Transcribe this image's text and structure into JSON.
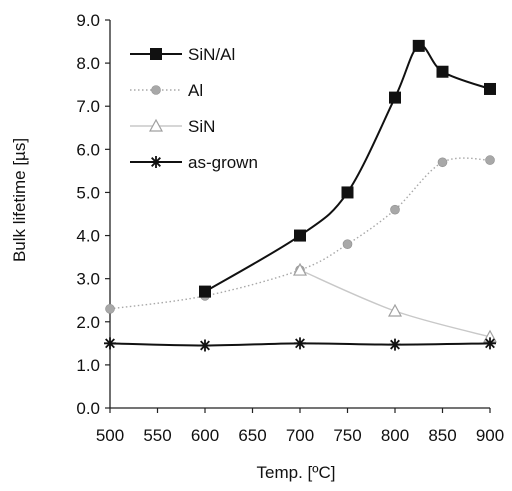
{
  "chart_data": {
    "type": "line",
    "title": "",
    "xlabel": "Temp. [ºC]",
    "ylabel": "Bulk lifetime [µs]",
    "xlim": [
      500,
      900
    ],
    "ylim": [
      0,
      9
    ],
    "grid": false,
    "legend_position": "top-left",
    "x_ticks": [
      "500",
      "550",
      "600",
      "650",
      "700",
      "750",
      "800",
      "850",
      "900"
    ],
    "y_ticks": [
      "0.0",
      "1.0",
      "2.0",
      "3.0",
      "4.0",
      "5.0",
      "6.0",
      "7.0",
      "8.0",
      "9.0"
    ],
    "series": [
      {
        "name": "SiN/Al",
        "color": "#111111",
        "marker": "square",
        "line": "solid",
        "x": [
          600,
          700,
          750,
          800,
          825,
          850,
          900
        ],
        "y": [
          2.7,
          4.0,
          5.0,
          7.2,
          8.4,
          7.8,
          7.4
        ]
      },
      {
        "name": "Al",
        "color": "#a8a8a8",
        "marker": "diamond",
        "line": "dotted",
        "x": [
          500,
          600,
          700,
          750,
          800,
          850,
          900
        ],
        "y": [
          2.3,
          2.6,
          3.2,
          3.8,
          4.6,
          5.7,
          5.75
        ]
      },
      {
        "name": "SiN",
        "color": "#c8c8c8",
        "marker": "triangle",
        "line": "solid",
        "x": [
          700,
          800,
          900
        ],
        "y": [
          3.2,
          2.25,
          1.65
        ]
      },
      {
        "name": "as-grown",
        "color": "#111111",
        "marker": "star",
        "line": "solid",
        "x": [
          500,
          600,
          700,
          800,
          900
        ],
        "y": [
          1.5,
          1.45,
          1.5,
          1.47,
          1.5
        ]
      }
    ]
  }
}
